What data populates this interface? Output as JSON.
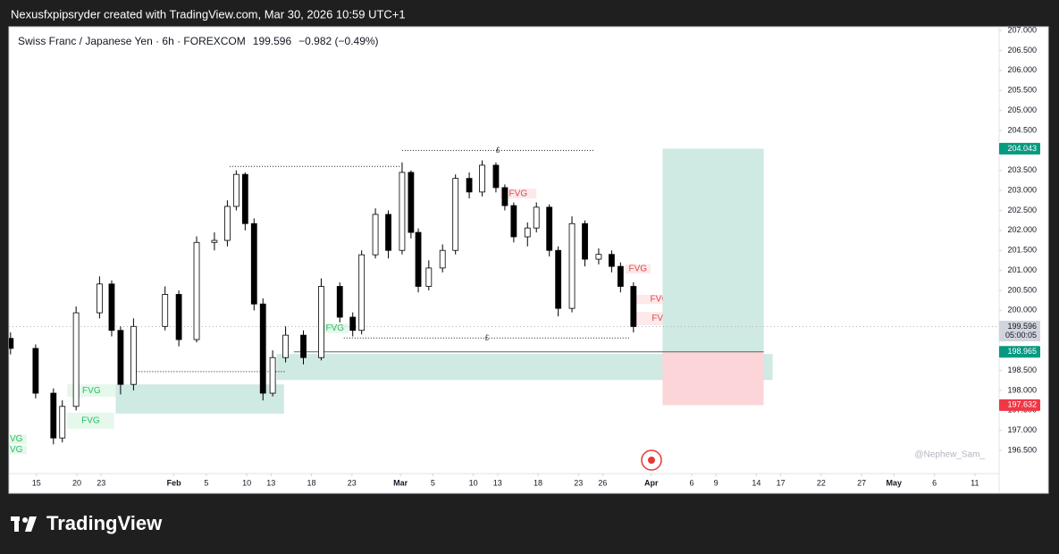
{
  "top_caption": "Nexusfxpipsryder created with TradingView.com, Mar 30, 2026 10:59 UTC+1",
  "brand": "TradingView",
  "chart_data": {
    "type": "candlestick",
    "title": "Swiss Franc / Japanese Yen · 6h · FOREXCOM",
    "last_price": 199.596,
    "change": "−0.982 (−0.49%)",
    "countdown": "05:00:05",
    "watermark": "@Nephew_Sam_",
    "x": [
      11.8,
      14.9,
      17.1,
      18.2,
      19.9,
      22.8,
      24.3,
      25.4,
      27.0,
      30.9,
      32.6,
      34.8,
      37.0,
      38.6,
      39.7,
      40.8,
      41.9,
      43.0,
      44.2,
      45.8,
      48.0,
      50.2,
      52.5,
      54.1,
      55.2,
      56.9,
      58.5,
      60.2,
      61.3,
      62.2,
      63.5,
      65.2,
      66.8,
      68.5,
      70.1,
      71.8,
      72.9,
      74.0,
      75.7,
      76.8,
      78.4,
      79.5,
      81.2,
      82.8,
      84.5,
      86.1,
      87.2,
      88.8
    ],
    "open": [
      199.3,
      199.05,
      197.93,
      196.81,
      197.6,
      199.94,
      200.66,
      199.5,
      198.15,
      199.6,
      200.4,
      199.27,
      201.7,
      201.75,
      202.6,
      203.4,
      202.17,
      200.16,
      197.93,
      198.82,
      199.38,
      198.82,
      200.6,
      199.83,
      199.5,
      201.39,
      202.4,
      201.5,
      203.45,
      201.95,
      200.6,
      201.06,
      201.5,
      203.3,
      202.96,
      203.63,
      203.07,
      202.62,
      201.84,
      202.06,
      202.58,
      201.5,
      200.05,
      202.17,
      201.28,
      201.4,
      201.1,
      200.6
    ],
    "high": [
      199.45,
      199.15,
      198.05,
      197.75,
      200.1,
      200.85,
      200.75,
      199.6,
      199.8,
      200.6,
      200.5,
      201.85,
      201.95,
      202.75,
      203.5,
      203.45,
      202.3,
      200.3,
      199.0,
      199.6,
      199.5,
      200.8,
      200.7,
      199.95,
      201.5,
      202.55,
      202.5,
      203.7,
      203.5,
      202.05,
      201.25,
      201.65,
      203.4,
      203.45,
      203.75,
      203.7,
      203.15,
      202.7,
      202.2,
      202.7,
      202.65,
      201.6,
      202.35,
      202.25,
      201.55,
      201.5,
      201.2,
      200.7
    ],
    "low": [
      198.9,
      197.8,
      196.65,
      196.7,
      197.5,
      199.8,
      199.35,
      197.9,
      198.0,
      199.5,
      199.1,
      199.2,
      201.5,
      201.6,
      202.5,
      202.0,
      200.0,
      197.75,
      197.85,
      198.7,
      198.65,
      198.75,
      199.7,
      199.35,
      199.4,
      201.3,
      201.3,
      201.4,
      201.8,
      200.45,
      200.5,
      200.95,
      201.4,
      202.8,
      202.85,
      202.95,
      202.5,
      201.7,
      201.6,
      201.95,
      201.35,
      199.85,
      199.95,
      201.1,
      201.15,
      200.95,
      200.45,
      199.45
    ],
    "close": [
      199.05,
      197.93,
      196.81,
      197.6,
      199.94,
      200.66,
      199.5,
      198.15,
      199.6,
      200.4,
      199.27,
      201.7,
      201.75,
      202.6,
      203.4,
      202.17,
      200.16,
      197.93,
      198.82,
      199.38,
      198.82,
      200.6,
      199.83,
      199.5,
      201.39,
      202.4,
      201.5,
      203.45,
      201.95,
      200.6,
      201.06,
      201.5,
      203.3,
      202.96,
      203.63,
      203.07,
      202.62,
      201.84,
      202.06,
      202.58,
      201.5,
      200.05,
      202.17,
      201.28,
      201.4,
      201.1,
      200.6,
      199.596
    ],
    "up_color": "#ffffff",
    "down_color": "#000000",
    "wick_color": "#000000",
    "xlim": [
      11.6,
      134
    ],
    "xticks": [
      15,
      20,
      23,
      {
        "value": 32,
        "label": "Feb"
      },
      {
        "value": 36,
        "label": "5"
      },
      {
        "value": 41,
        "label": "10"
      },
      {
        "value": 44,
        "label": "13"
      },
      {
        "value": 49,
        "label": "18"
      },
      {
        "value": 54,
        "label": "23"
      },
      {
        "value": 60,
        "label": "Mar"
      },
      {
        "value": 64,
        "label": "5"
      },
      {
        "value": 69,
        "label": "10"
      },
      {
        "value": 72,
        "label": "13"
      },
      {
        "value": 77,
        "label": "18"
      },
      {
        "value": 82,
        "label": "23"
      },
      {
        "value": 85,
        "label": "26"
      },
      {
        "value": 91,
        "label": "Apr"
      },
      {
        "value": 96,
        "label": "6"
      },
      {
        "value": 99,
        "label": "9"
      },
      {
        "value": 104,
        "label": "14"
      },
      {
        "value": 107,
        "label": "17"
      },
      {
        "value": 112,
        "label": "22"
      },
      {
        "value": 117,
        "label": "27"
      },
      {
        "value": 121,
        "label": "May"
      },
      {
        "value": 126,
        "label": "6"
      },
      {
        "value": 131,
        "label": "11"
      }
    ],
    "ylim": [
      195.92,
      207.09
    ],
    "yticks": [
      {
        "value": 196.5,
        "label": "196.500"
      },
      {
        "value": 197,
        "label": "197.000"
      },
      {
        "value": 197.5,
        "label": "197.500"
      },
      {
        "value": 198,
        "label": "198.000"
      },
      {
        "value": 198.5,
        "label": "198.500"
      },
      {
        "value": 199,
        "label": "199.000"
      },
      {
        "value": 199.5,
        "label": "199.500"
      },
      {
        "value": 200,
        "label": "200.000"
      },
      {
        "value": 200.5,
        "label": "200.500"
      },
      {
        "value": 201,
        "label": "201.000"
      },
      {
        "value": 201.5,
        "label": "201.500"
      },
      {
        "value": 202,
        "label": "202.000"
      },
      {
        "value": 202.5,
        "label": "202.500"
      },
      {
        "value": 203,
        "label": "203.000"
      },
      {
        "value": 203.5,
        "label": "203.500"
      },
      {
        "value": 204,
        "label": "204.000"
      },
      {
        "value": 204.5,
        "label": "204.500"
      },
      {
        "value": 205,
        "label": "205.000"
      },
      {
        "value": 205.5,
        "label": "205.500"
      },
      {
        "value": 206,
        "label": "206.000"
      },
      {
        "value": 206.5,
        "label": "206.500"
      },
      {
        "value": 207,
        "label": "207.000"
      }
    ],
    "zones": [
      {
        "x": [
          24.8,
          45.6
        ],
        "y": [
          197.42,
          198.15
        ],
        "color": "#cfe9e3"
      },
      {
        "x": [
          44.7,
          106.0
        ],
        "y": [
          198.26,
          198.91
        ],
        "color": "#cfe9e3"
      },
      {
        "label": "FVG",
        "x": [
          18.8,
          24.8
        ],
        "y": [
          197.84,
          198.15
        ],
        "color": "#e6f7ec",
        "text_color": "#22c55e"
      },
      {
        "label": "FVG",
        "x": [
          18.8,
          24.6
        ],
        "y": [
          197.04,
          197.44
        ],
        "color": "#e6f7ec",
        "text_color": "#22c55e"
      },
      {
        "label": "VG",
        "x": [
          11.6,
          13.8
        ],
        "y": [
          196.66,
          196.9
        ],
        "color": "#e6f7ec",
        "text_color": "#22c55e"
      },
      {
        "label": "VG",
        "x": [
          11.6,
          13.8
        ],
        "y": [
          196.41,
          196.63
        ],
        "color": "#e6f7ec",
        "text_color": "#22c55e"
      },
      {
        "label": "FVG",
        "x": [
          50.2,
          53.6
        ],
        "y": [
          199.43,
          199.67
        ],
        "color": "#e6f7ec",
        "text_color": "#22c55e"
      },
      {
        "label": "FVG",
        "x": [
          72.3,
          76.8
        ],
        "y": [
          202.8,
          203.04
        ],
        "color": "#fde8ea",
        "text_color": "#e04b4b"
      },
      {
        "label": "FVG",
        "x": [
          87.8,
          90.9
        ],
        "y": [
          200.92,
          201.15
        ],
        "color": "#fde8ea",
        "text_color": "#e04b4b"
      },
      {
        "label": "FVG",
        "x": [
          88.7,
          95.3
        ],
        "y": [
          200.16,
          200.39
        ],
        "color": "#fde8ea",
        "text_color": "#e04b4b"
      },
      {
        "label": "FVG",
        "x": [
          89.1,
          95.3
        ],
        "y": [
          199.63,
          199.96
        ],
        "color": "#fde8ea",
        "text_color": "#e04b4b"
      }
    ],
    "levels": [
      {
        "y": 203.6,
        "x": [
          38.9,
          59.9
        ]
      },
      {
        "y": 204.0,
        "x": [
          60.2,
          83.9
        ],
        "marker": "£"
      },
      {
        "y": 199.31,
        "x": [
          53.0,
          88.4
        ],
        "marker": "£"
      },
      {
        "y": 198.47,
        "x": [
          27.0,
          45.8
        ]
      }
    ],
    "position": {
      "x": [
        92.4,
        104.9
      ],
      "entry": 198.965,
      "target": 204.043,
      "stop": 197.632,
      "profit_color": "#cfe9e3",
      "loss_color": "#fbd5d8",
      "tag_up": "#089981",
      "tag_down": "#f23645"
    }
  }
}
